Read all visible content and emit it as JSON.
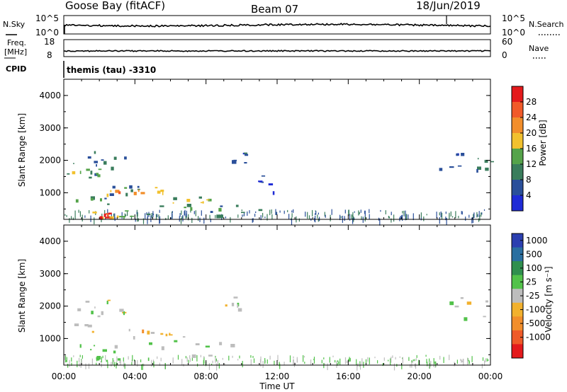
{
  "header": {
    "station": "Goose Bay (fitACF)",
    "beam": "Beam 07",
    "date": "18/Jun/2019"
  },
  "top_panels": {
    "nsky_label": "N.Sky",
    "nsky_ticks": [
      "10^5",
      "10^0"
    ],
    "nsearch_label": "N.Search",
    "nsearch_ticks": [
      "10^5",
      "10^0"
    ],
    "freq_label_1": "Freq.",
    "freq_label_2": "[MHz]",
    "freq_ticks": [
      "18",
      "8"
    ],
    "nave_label": "Nave",
    "nave_ticks": [
      "60",
      "0"
    ],
    "cpid_label": "CPID",
    "cpid_value": "themis (tau) -3310"
  },
  "chart_data": [
    {
      "type": "heatmap",
      "name": "power",
      "ylabel": "Slant Range [km]",
      "xlabel": "",
      "xlim": [
        "00:00",
        "24:00"
      ],
      "ylim": [
        180,
        4500
      ],
      "yticks": [
        "4000",
        "3000",
        "2000",
        "1000"
      ],
      "colorbar_label": "Power [dB]",
      "colorbar_ticks": [
        "28",
        "24",
        "20",
        "16",
        "12",
        "8",
        "4"
      ],
      "colorbar_colors": [
        "#e41a1c",
        "#f15a29",
        "#f28e2b",
        "#f2c12e",
        "#55a34a",
        "#3a7d5c",
        "#2a4f9a",
        "#1f2bd6"
      ],
      "regions": [
        {
          "t": [
            0.0,
            2.3
          ],
          "r": [
            1450,
            2000
          ],
          "level": 8
        },
        {
          "t": [
            0.2,
            2.0
          ],
          "r": [
            1550,
            1750
          ],
          "level": 14
        },
        {
          "t": [
            1.2,
            3.6
          ],
          "r": [
            1800,
            2300
          ],
          "level": 8
        },
        {
          "t": [
            0.3,
            6.8
          ],
          "r": [
            900,
            1300
          ],
          "level": 8
        },
        {
          "t": [
            2.0,
            5.8
          ],
          "r": [
            950,
            1200
          ],
          "level": 18
        },
        {
          "t": [
            2.6,
            4.6
          ],
          "r": [
            1020,
            1140
          ],
          "level": 22
        },
        {
          "t": [
            0.5,
            4.0
          ],
          "r": [
            650,
            900
          ],
          "level": 10
        },
        {
          "t": [
            5.0,
            9.0
          ],
          "r": [
            500,
            900
          ],
          "level": 12
        },
        {
          "t": [
            6.0,
            8.2
          ],
          "r": [
            700,
            820
          ],
          "level": 18
        },
        {
          "t": [
            1.6,
            3.1
          ],
          "r": [
            250,
            520
          ],
          "level": 18
        },
        {
          "t": [
            1.9,
            2.6
          ],
          "r": [
            250,
            400
          ],
          "level": 28
        },
        {
          "t": [
            3.0,
            5.0
          ],
          "r": [
            280,
            480
          ],
          "level": 14
        },
        {
          "t": [
            8.2,
            11.0
          ],
          "r": [
            300,
            1100
          ],
          "level": 8
        },
        {
          "t": [
            9.0,
            10.2
          ],
          "r": [
            1900,
            2300
          ],
          "level": 6
        },
        {
          "t": [
            10.5,
            12.0
          ],
          "r": [
            1000,
            1600
          ],
          "level": 5
        },
        {
          "t": [
            21.0,
            22.6
          ],
          "r": [
            1700,
            2300
          ],
          "level": 6
        },
        {
          "t": [
            22.6,
            24.0
          ],
          "r": [
            1550,
            2300
          ],
          "level": 8
        }
      ]
    },
    {
      "type": "heatmap",
      "name": "velocity",
      "ylabel": "Slant Range [km]",
      "xlabel": "Time UT",
      "xlim": [
        "00:00",
        "24:00"
      ],
      "ylim": [
        180,
        4500
      ],
      "xticks": [
        "00:00",
        "04:00",
        "08:00",
        "12:00",
        "16:00",
        "20:00",
        "00:00"
      ],
      "yticks": [
        "4000",
        "3000",
        "2000",
        "1000"
      ],
      "colorbar_label": "Velocity [m s⁻¹]",
      "colorbar_ticks": [
        "1000",
        "500",
        "100",
        "25",
        "-25",
        "-100",
        "-500",
        "-1000"
      ],
      "colorbar_colors": [
        "#2b3fb0",
        "#2a6fa0",
        "#2f8f4e",
        "#52c24a",
        "#bdbdbd",
        "#f2b12e",
        "#f28e2b",
        "#ef5a28",
        "#e41a1c"
      ],
      "regions": [
        {
          "t": [
            0.0,
            2.2
          ],
          "r": [
            1400,
            2000
          ],
          "v": 0
        },
        {
          "t": [
            1.2,
            3.6
          ],
          "r": [
            1800,
            2300
          ],
          "v": 0
        },
        {
          "t": [
            0.3,
            6.8
          ],
          "r": [
            850,
            1300
          ],
          "v": 0
        },
        {
          "t": [
            2.8,
            6.0
          ],
          "r": [
            1080,
            1280
          ],
          "v": -80
        },
        {
          "t": [
            4.0,
            10.8
          ],
          "r": [
            500,
            900
          ],
          "v": 0
        },
        {
          "t": [
            0.5,
            3.5
          ],
          "r": [
            600,
            850
          ],
          "v": 60
        },
        {
          "t": [
            1.5,
            5.0
          ],
          "r": [
            250,
            500
          ],
          "v": 60
        },
        {
          "t": [
            9.0,
            10.2
          ],
          "r": [
            1900,
            2300
          ],
          "v": 0
        },
        {
          "t": [
            21.0,
            24.0
          ],
          "r": [
            1600,
            2300
          ],
          "v": 0
        }
      ]
    }
  ]
}
